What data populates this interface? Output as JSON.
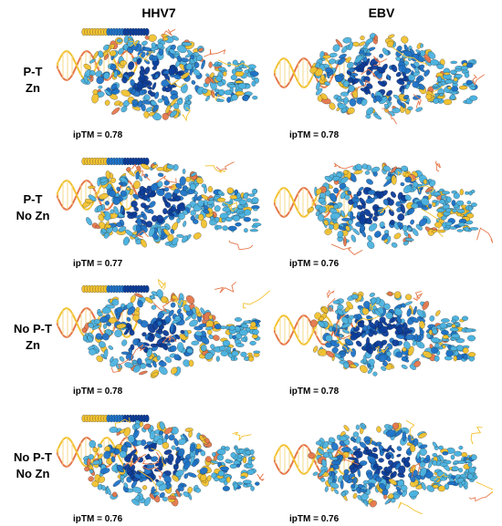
{
  "figure": {
    "columns": [
      "HHV7",
      "EBV"
    ],
    "rows": [
      {
        "label_line1": "P-T",
        "label_line2": "Zn",
        "ipTM": [
          "ipTM = 0.78",
          "ipTM = 0.78"
        ]
      },
      {
        "label_line1": "P-T",
        "label_line2": "No Zn",
        "ipTM": [
          "ipTM = 0.77",
          "ipTM = 0.76"
        ]
      },
      {
        "label_line1": "No P-T",
        "label_line2": "Zn",
        "ipTM": [
          "ipTM = 0.78",
          "ipTM = 0.78"
        ]
      },
      {
        "label_line1": "No P-T",
        "label_line2": "No Zn",
        "ipTM": [
          "ipTM = 0.76",
          "ipTM = 0.76"
        ]
      }
    ],
    "colors": {
      "very_high": "#0b3d9b",
      "high": "#1e73c8",
      "medium": "#4cb3e0",
      "low": "#f2c230",
      "very_low": "#e5774b"
    }
  }
}
